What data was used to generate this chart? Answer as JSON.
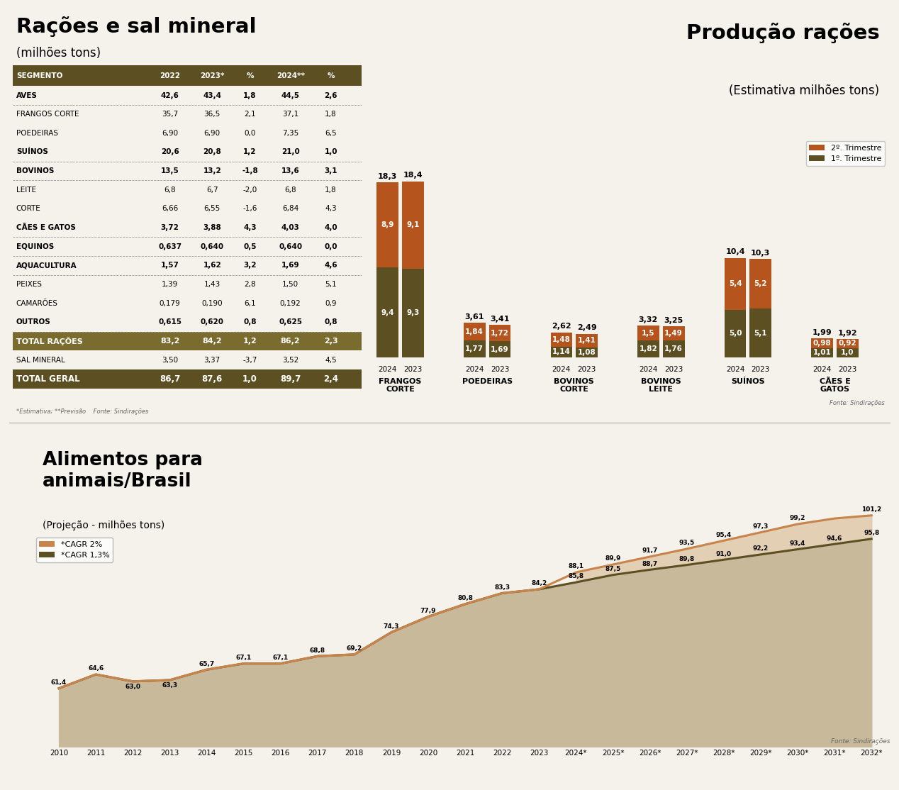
{
  "title_table": "Rações e sal mineral",
  "subtitle_table": "(milhões tons)",
  "title_bar": "Produção rações",
  "subtitle_bar": "(Estimativa milhões tons)",
  "title_line": "Alimentos para\nanimais/Brasil",
  "subtitle_line": "(Projeção - milhões tons)",
  "table_header": [
    "SEGMENTO",
    "2022",
    "2023*",
    "%",
    "2024**",
    "%"
  ],
  "table_rows": [
    [
      "AVES",
      "42,6",
      "43,4",
      "1,8",
      "44,5",
      "2,6",
      true
    ],
    [
      "FRANGOS CORTE",
      "35,7",
      "36,5",
      "2,1",
      "37,1",
      "1,8",
      false
    ],
    [
      "POEDEIRAS",
      "6,90",
      "6,90",
      "0,0",
      "7,35",
      "6,5",
      false
    ],
    [
      "SUÍNOS",
      "20,6",
      "20,8",
      "1,2",
      "21,0",
      "1,0",
      true
    ],
    [
      "BOVINOS",
      "13,5",
      "13,2",
      "-1,8",
      "13,6",
      "3,1",
      true
    ],
    [
      "LEITE",
      "6,8",
      "6,7",
      "-2,0",
      "6,8",
      "1,8",
      false
    ],
    [
      "CORTE",
      "6,66",
      "6,55",
      "-1,6",
      "6,84",
      "4,3",
      false
    ],
    [
      "CÃES E GATOS",
      "3,72",
      "3,88",
      "4,3",
      "4,03",
      "4,0",
      true
    ],
    [
      "EQUINOS",
      "0,637",
      "0,640",
      "0,5",
      "0,640",
      "0,0",
      true
    ],
    [
      "AQUACULTURA",
      "1,57",
      "1,62",
      "3,2",
      "1,69",
      "4,6",
      true
    ],
    [
      "PEIXES",
      "1,39",
      "1,43",
      "2,8",
      "1,50",
      "5,1",
      false
    ],
    [
      "CAMARÕES",
      "0,179",
      "0,190",
      "6,1",
      "0,192",
      "0,9",
      false
    ],
    [
      "OUTROS",
      "0,615",
      "0,620",
      "0,8",
      "0,625",
      "0,8",
      true
    ],
    [
      "TOTAL RAÇÕES",
      "83,2",
      "84,2",
      "1,2",
      "86,2",
      "2,3",
      "total"
    ],
    [
      "SAL MINERAL",
      "3,50",
      "3,37",
      "-3,7",
      "3,52",
      "4,5",
      false
    ],
    [
      "TOTAL GERAL",
      "86,7",
      "87,6",
      "1,0",
      "89,7",
      "2,4",
      "total_geral"
    ]
  ],
  "footnote_table": "*Estimativa; **Previsão    Fonte: Sindirações",
  "footnote_bar": "Fonte: Sindirações",
  "footnote_line": "Fonte: Sindirações",
  "bar_groups": [
    {
      "label": "FRANGOS\nCORTE",
      "2024_q2": 8.9,
      "2024_q1": 9.4,
      "2024_total": 18.3,
      "2023_q2": 9.1,
      "2023_q1": 9.3,
      "2023_total": 18.4
    },
    {
      "label": "POEDEIRAS",
      "2024_q2": 1.84,
      "2024_q1": 1.77,
      "2024_total": 3.61,
      "2023_q2": 1.72,
      "2023_q1": 1.69,
      "2023_total": 3.41
    },
    {
      "label": "BOVINOS\nCORTE",
      "2024_q2": 1.48,
      "2024_q1": 1.14,
      "2024_total": 2.62,
      "2023_q2": 1.41,
      "2023_q1": 1.08,
      "2023_total": 2.49
    },
    {
      "label": "BOVINOS\nLEITE",
      "2024_q2": 1.5,
      "2024_q1": 1.82,
      "2024_total": 3.32,
      "2023_q2": 1.49,
      "2023_q1": 1.76,
      "2023_total": 3.25
    },
    {
      "label": "SUÍNOS",
      "2024_q2": 5.4,
      "2024_q1": 5.0,
      "2024_total": 10.4,
      "2023_q2": 5.2,
      "2023_q1": 5.1,
      "2023_total": 10.3
    },
    {
      "label": "CÃES E\nGATOS",
      "2024_q2": 0.98,
      "2024_q1": 1.01,
      "2024_total": 1.99,
      "2023_q2": 0.92,
      "2023_q1": 1.0,
      "2023_total": 1.92
    }
  ],
  "color_q2": "#b5541c",
  "color_q1": "#5c5022",
  "color_header": "#5c5022",
  "color_total_row": "#7a6b2e",
  "color_total_geral": "#5c5022",
  "line_years": [
    "2010",
    "2011",
    "2012",
    "2013",
    "2014",
    "2015",
    "2016",
    "2017",
    "2018",
    "2019",
    "2020",
    "2021",
    "2022",
    "2023",
    "2024*",
    "2025*",
    "2026*",
    "2027*",
    "2028*",
    "2029*",
    "2030*",
    "2031*",
    "2032*"
  ],
  "line_cagr13": [
    61.4,
    64.6,
    63.0,
    63.3,
    65.7,
    67.1,
    67.1,
    68.8,
    69.2,
    74.3,
    77.9,
    80.8,
    83.3,
    84.2,
    85.8,
    87.5,
    88.7,
    89.8,
    91.0,
    92.2,
    93.4,
    94.6,
    95.8
  ],
  "line_cagr2_full": [
    61.4,
    64.6,
    63.0,
    63.3,
    65.7,
    67.1,
    67.1,
    68.8,
    69.2,
    74.3,
    77.9,
    80.8,
    83.3,
    84.2,
    88.1,
    89.9,
    91.7,
    93.5,
    95.4,
    97.3,
    99.2,
    100.5,
    101.2
  ],
  "line_cagr2_labels": {
    "14": 88.1,
    "15": 89.9,
    "16": 91.7,
    "17": 93.5,
    "18": 95.4,
    "19": 97.3,
    "20": 99.2,
    "22": 101.2
  },
  "color_cagr2": "#c8844a",
  "color_cagr13": "#5c5022",
  "color_fill_main": "#c8b99a",
  "color_fill_upper": "#dfc9aa",
  "bg_color": "#f5f2ec",
  "separator_rows": [
    "AVES",
    "SUÍNOS",
    "BOVINOS",
    "CÃES E GATOS",
    "EQUINOS",
    "AQUACULTURA",
    "OUTROS"
  ]
}
